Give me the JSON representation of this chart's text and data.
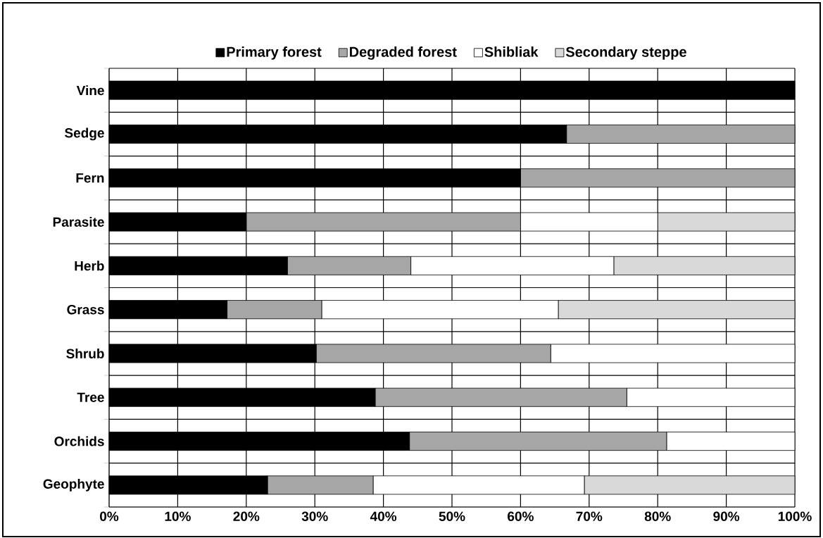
{
  "chart_data": {
    "type": "bar",
    "orientation": "horizontal",
    "stacked": true,
    "categories": [
      "Vine",
      "Sedge",
      "Fern",
      "Parasite",
      "Herb",
      "Grass",
      "Shrub",
      "Tree",
      "Orchids",
      "Geophyte"
    ],
    "series": [
      {
        "name": "Primary forest",
        "color": "#000000",
        "values": [
          100,
          66.7,
          60,
          20,
          26,
          17.2,
          30.2,
          38.8,
          43.8,
          23.1
        ]
      },
      {
        "name": "Degraded forest",
        "color": "#a6a6a6",
        "values": [
          0,
          33.3,
          40,
          40,
          18,
          13.8,
          34.2,
          36.7,
          37.5,
          15.4
        ]
      },
      {
        "name": "Shibliak",
        "color": "#ffffff",
        "values": [
          0,
          0,
          0,
          20,
          29.6,
          34.5,
          35.6,
          24.5,
          18.7,
          30.8
        ]
      },
      {
        "name": "Secondary steppe",
        "color": "#d9d9d9",
        "values": [
          0,
          0,
          0,
          20,
          26.4,
          34.5,
          0,
          0,
          0,
          30.7
        ]
      }
    ],
    "xlim": [
      0,
      100
    ],
    "xticks": [
      {
        "value": 0,
        "label": "0%"
      },
      {
        "value": 10,
        "label": "10%"
      },
      {
        "value": 20,
        "label": "20%"
      },
      {
        "value": 30,
        "label": "30%"
      },
      {
        "value": 40,
        "label": "40%"
      },
      {
        "value": 50,
        "label": "50%"
      },
      {
        "value": 60,
        "label": "60%"
      },
      {
        "value": 70,
        "label": "70%"
      },
      {
        "value": 80,
        "label": "80%"
      },
      {
        "value": 90,
        "label": "90%"
      },
      {
        "value": 100,
        "label": "100%"
      }
    ],
    "grid": true,
    "legend": "top"
  }
}
